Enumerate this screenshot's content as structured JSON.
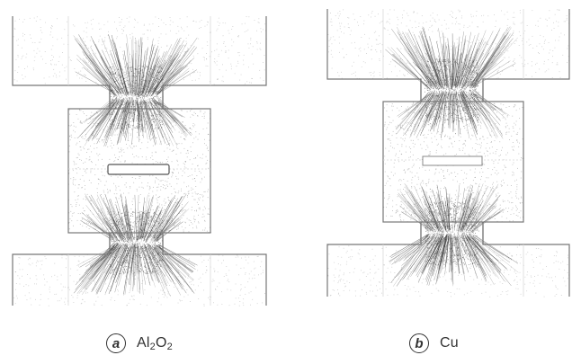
{
  "panels": [
    {
      "id": "a",
      "letter": "a",
      "material": "Al2O2",
      "material_parts": [
        "Al",
        "2",
        "O",
        "2"
      ]
    },
    {
      "id": "b",
      "letter": "b",
      "material": "Cu"
    }
  ],
  "colors": {
    "stroke": "#777777",
    "dots": "#333333",
    "caption": "#333333"
  }
}
